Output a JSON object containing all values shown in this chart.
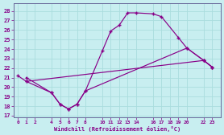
{
  "xlabel": "Windchill (Refroidissement éolien,°C)",
  "background_color": "#c8eef0",
  "line_color": "#880088",
  "grid_color": "#aadddd",
  "xticks": [
    0,
    1,
    2,
    4,
    5,
    6,
    7,
    8,
    10,
    11,
    12,
    13,
    14,
    16,
    17,
    18,
    19,
    20,
    22,
    23
  ],
  "yticks": [
    17,
    18,
    19,
    20,
    21,
    22,
    23,
    24,
    25,
    26,
    27,
    28
  ],
  "xlim": [
    -0.5,
    24.0
  ],
  "ylim": [
    16.8,
    28.8
  ],
  "line1_x": [
    1,
    4,
    5,
    6,
    7,
    8,
    10,
    11,
    12,
    13,
    14,
    16,
    17,
    19,
    20,
    22,
    23
  ],
  "line1_y": [
    21.0,
    19.4,
    18.2,
    17.7,
    18.2,
    19.6,
    23.8,
    25.9,
    26.5,
    27.8,
    27.8,
    27.7,
    27.4,
    25.2,
    24.1,
    22.8,
    22.1
  ],
  "line2_x": [
    1,
    4,
    5,
    6,
    7,
    8,
    20,
    22,
    23
  ],
  "line2_y": [
    20.6,
    19.4,
    18.2,
    17.7,
    18.2,
    19.6,
    24.1,
    22.8,
    22.1
  ],
  "line3_x": [
    0,
    1,
    22,
    23
  ],
  "line3_y": [
    21.2,
    20.6,
    22.8,
    22.1
  ]
}
